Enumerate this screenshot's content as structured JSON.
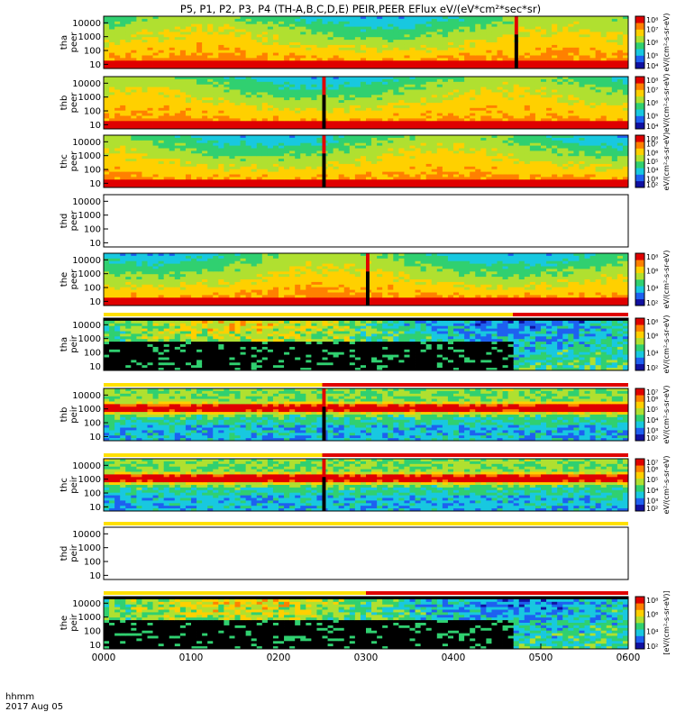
{
  "chart_data": [
    {
      "type": "heatmap",
      "title": "P5, P1, P2, P3, P4 (TH-A,B,C,D,E) PEIR,PEER EFlux eV/(eV*cm²*sec*sr)",
      "date": "2017 Aug 05",
      "x_unit_label": "hhmm",
      "x_tick_labels": [
        "0000",
        "0100",
        "0200",
        "0300",
        "0400",
        "0500",
        "0600"
      ],
      "x_range_hours": [
        0,
        6
      ],
      "colormap": [
        "#000000",
        "#1010a0",
        "#1e60f0",
        "#18c8e0",
        "#30d070",
        "#b0e030",
        "#ffd000",
        "#ff8000",
        "#e00000"
      ],
      "panels": [
        {
          "label": "tha peer",
          "y_tick_labels": [
            "10",
            "100",
            "1000",
            "10000"
          ],
          "ylim": [
            5,
            30000
          ],
          "y_scale": "log",
          "has_data": true,
          "gap_start_hours": 4.7,
          "gap_end_hours": 4.74,
          "gap_lower_hours": 4.7,
          "colorbar_ticks": [
            "10⁴",
            "10⁵",
            "10⁶",
            "10⁷",
            "10⁸"
          ],
          "colorbar_label": "eV/(cm²-s-sr-eV)",
          "status_bar": null
        },
        {
          "label": "thb peer",
          "y_tick_labels": [
            "10",
            "100",
            "1000",
            "10000"
          ],
          "ylim": [
            5,
            30000
          ],
          "y_scale": "log",
          "has_data": true,
          "gap_start_hours": 2.5,
          "gap_end_hours": 2.54,
          "colorbar_ticks": [
            "10⁴",
            "10⁵",
            "10⁶",
            "10⁷",
            "10⁸"
          ],
          "colorbar_label": "eV/(cm²-s-sr-eV)",
          "status_bar": null
        },
        {
          "label": "thc peer",
          "y_tick_labels": [
            "10",
            "100",
            "1000",
            "10000"
          ],
          "ylim": [
            5,
            30000
          ],
          "y_scale": "log",
          "has_data": true,
          "gap_start_hours": 2.5,
          "gap_end_hours": 2.54,
          "colorbar_ticks": [
            "10²",
            "10³",
            "10⁴",
            "10⁵",
            "10⁶",
            "10⁷",
            "10⁸"
          ],
          "colorbar_label": "eV/(cm²-s-sr-eV)",
          "status_bar": null
        },
        {
          "label": "thd peer",
          "y_tick_labels": [
            "10",
            "100",
            "1000",
            "10000"
          ],
          "ylim": [
            5,
            30000
          ],
          "y_scale": "log",
          "has_data": false,
          "colorbar_ticks": [],
          "colorbar_label": "eV/(cm²-s-sr-eV)",
          "status_bar": null
        },
        {
          "label": "the peer",
          "y_tick_labels": [
            "10",
            "100",
            "1000",
            "10000"
          ],
          "ylim": [
            5,
            30000
          ],
          "y_scale": "log",
          "has_data": true,
          "gap_start_hours": 3.0,
          "gap_end_hours": 3.04,
          "gap_lower_hours": 3.0,
          "colorbar_ticks": [
            "10²",
            "10⁴",
            "10⁶",
            "10⁸"
          ],
          "colorbar_label": "eV/(cm²-s-sr-eV)",
          "status_bar": null
        },
        {
          "label": "tha peir",
          "y_tick_labels": [
            "10",
            "100",
            "1000",
            "10000"
          ],
          "ylim": [
            5,
            30000
          ],
          "y_scale": "log",
          "has_data": true,
          "colorbar_ticks": [
            "10²",
            "10⁴",
            "10⁶",
            "10⁸"
          ],
          "colorbar_label": "eV/(cm²-s-sr-eV)",
          "status_bar": {
            "yellow_until_hours": 4.68
          }
        },
        {
          "label": "thb peir",
          "y_tick_labels": [
            "10",
            "100",
            "1000",
            "10000"
          ],
          "ylim": [
            5,
            30000
          ],
          "y_scale": "log",
          "has_data": true,
          "gap_start_hours": 2.5,
          "gap_end_hours": 2.54,
          "colorbar_ticks": [
            "10²",
            "10³",
            "10⁴",
            "10⁵",
            "10⁶",
            "10⁷"
          ],
          "colorbar_label": "eV/(cm²-s-sr-eV)",
          "status_bar": {
            "yellow_until_hours": 2.5
          }
        },
        {
          "label": "thc peir",
          "y_tick_labels": [
            "10",
            "100",
            "1000",
            "10000"
          ],
          "ylim": [
            5,
            30000
          ],
          "y_scale": "log",
          "has_data": true,
          "gap_start_hours": 2.5,
          "gap_end_hours": 2.54,
          "colorbar_ticks": [
            "10²",
            "10³",
            "10⁴",
            "10⁵",
            "10⁶",
            "10⁷"
          ],
          "colorbar_label": "eV/(cm²-s-sr-eV)",
          "status_bar": {
            "yellow_until_hours": 2.5
          }
        },
        {
          "label": "thd peir",
          "y_tick_labels": [
            "10",
            "100",
            "1000",
            "10000"
          ],
          "ylim": [
            5,
            30000
          ],
          "y_scale": "log",
          "has_data": false,
          "colorbar_ticks": [],
          "colorbar_label": "eV/(cm²-s-sr-eV)",
          "status_bar": {
            "yellow_until_hours": 6.0
          }
        },
        {
          "label": "the peir",
          "y_tick_labels": [
            "10",
            "100",
            "1000",
            "10000"
          ],
          "ylim": [
            5,
            30000
          ],
          "y_scale": "log",
          "has_data": true,
          "colorbar_ticks": [
            "10²",
            "10⁴",
            "10⁶",
            "10⁸"
          ],
          "colorbar_label": "[eV/(cm²-s-sr-eV)]",
          "status_bar": {
            "yellow_until_hours": 3.0
          }
        }
      ]
    }
  ]
}
